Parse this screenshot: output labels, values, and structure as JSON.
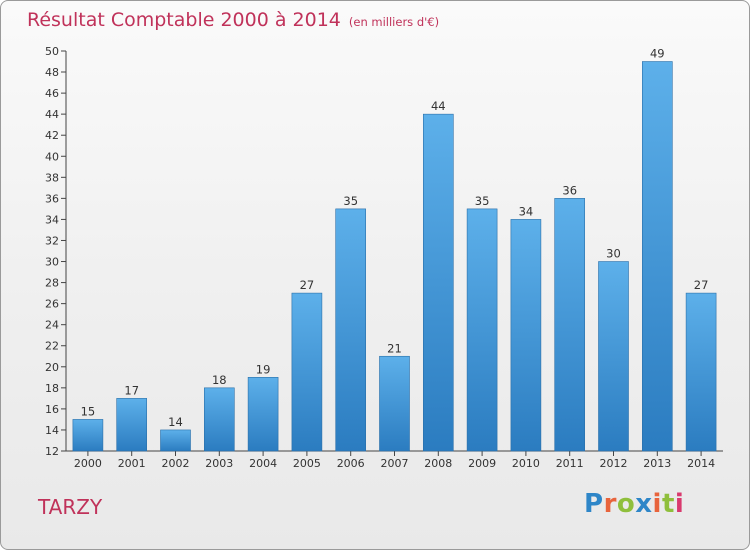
{
  "header": {
    "title": "Résultat Comptable 2000 à 2014",
    "subtitle": "(en milliers d'€)"
  },
  "commune": "TARZY",
  "logo": {
    "text": "Proxiti",
    "letter_colors": [
      "#2e86c8",
      "#e8643c",
      "#8fbf3c",
      "#2e86c8",
      "#e8643c",
      "#8fbf3c",
      "#d93a6e"
    ]
  },
  "chart_data": {
    "type": "bar",
    "title": "Résultat Comptable 2000 à 2014",
    "subtitle": "(en milliers d'€)",
    "xlabel": "",
    "ylabel": "",
    "categories": [
      "2000",
      "2001",
      "2002",
      "2003",
      "2004",
      "2005",
      "2006",
      "2007",
      "2008",
      "2009",
      "2010",
      "2011",
      "2012",
      "2013",
      "2014"
    ],
    "values": [
      15,
      17,
      14,
      18,
      19,
      27,
      35,
      21,
      44,
      35,
      34,
      36,
      30,
      49,
      27
    ],
    "ylim": [
      12,
      50
    ],
    "yticks": [
      12,
      14,
      16,
      18,
      20,
      22,
      24,
      26,
      28,
      30,
      32,
      34,
      36,
      38,
      40,
      42,
      44,
      46,
      48,
      50
    ],
    "grid": false,
    "bar_color": "#4a9fe0"
  }
}
